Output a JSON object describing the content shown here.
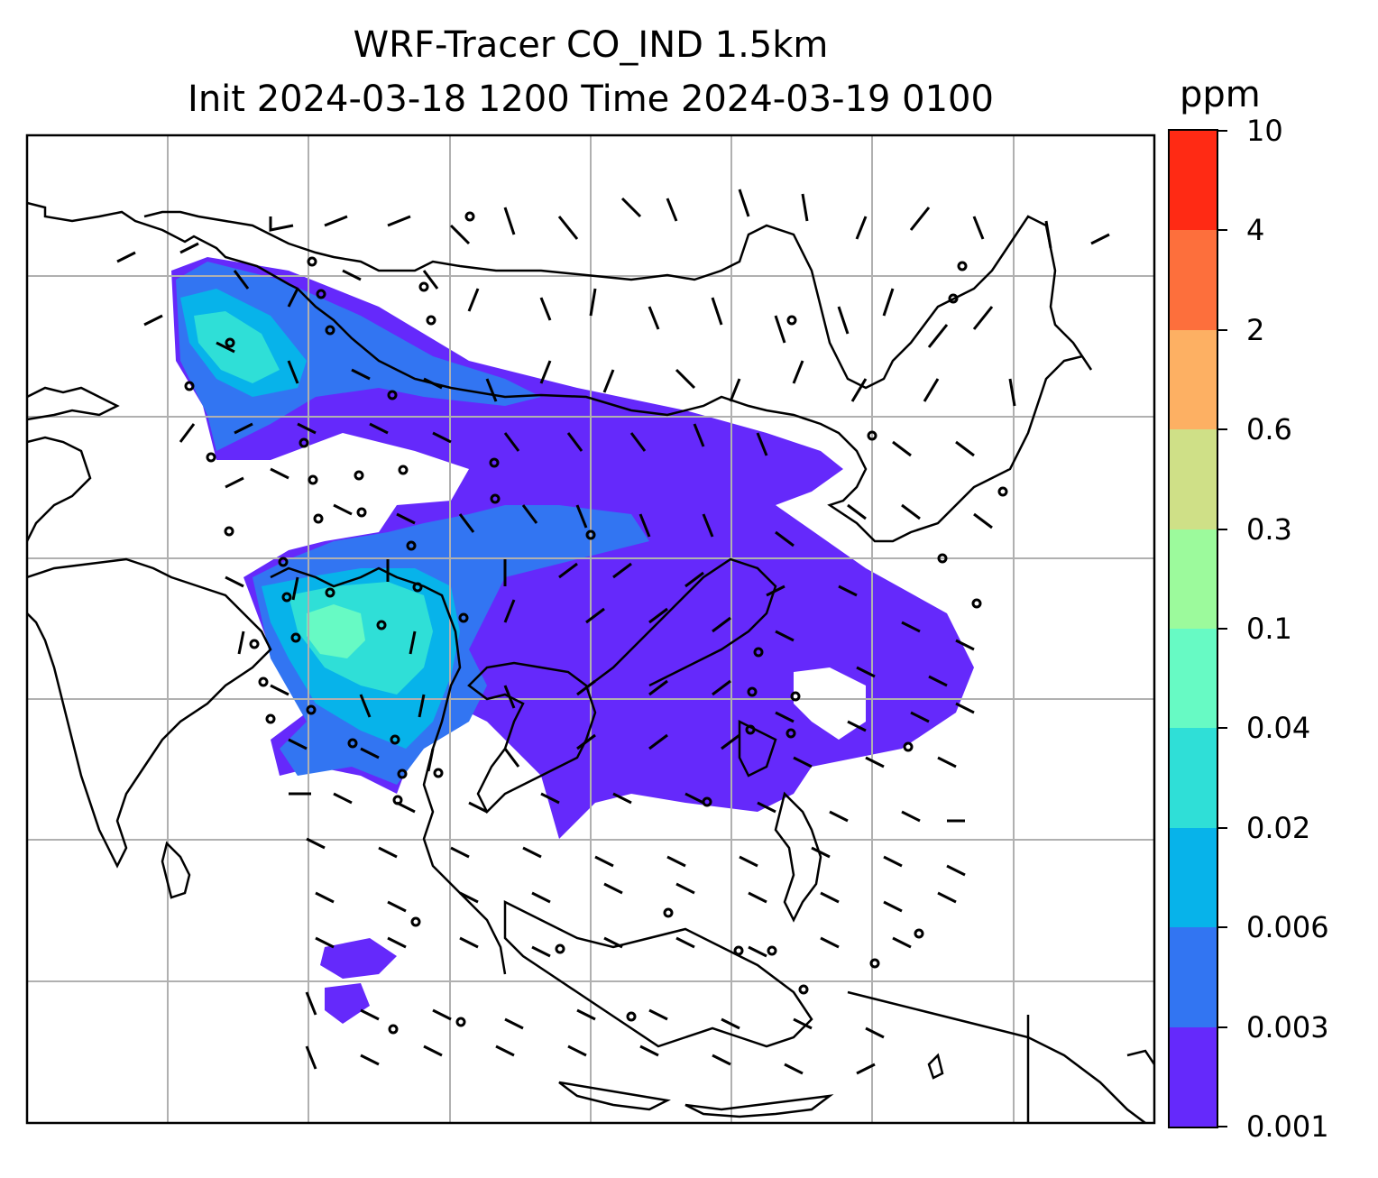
{
  "title_line1": "WRF-Tracer CO_IND 1.5km",
  "title_line2": "Init 2024-03-18 1200 Time 2024-03-19 0100",
  "colorbar": {
    "units": "ppm",
    "levels": [
      "0.001",
      "0.003",
      "0.006",
      "0.02",
      "0.04",
      "0.1",
      "0.3",
      "0.6",
      "2",
      "4",
      "10"
    ],
    "colors": [
      "#6529fb",
      "#3275f2",
      "#07b3ea",
      "#2fdfd7",
      "#67fac4",
      "#9cfa9c",
      "#cfe087",
      "#fdb063",
      "#fd6f3c",
      "#ff2a14"
    ]
  },
  "map": {
    "gridlines": "on",
    "plume_colors": {
      "low": "#6529fb",
      "mid": "#3275f2",
      "high": "#07b3ea",
      "higher": "#2fdfd7",
      "peak": "#67fac4"
    },
    "wind_barbs": "on",
    "coastlines": "on"
  }
}
